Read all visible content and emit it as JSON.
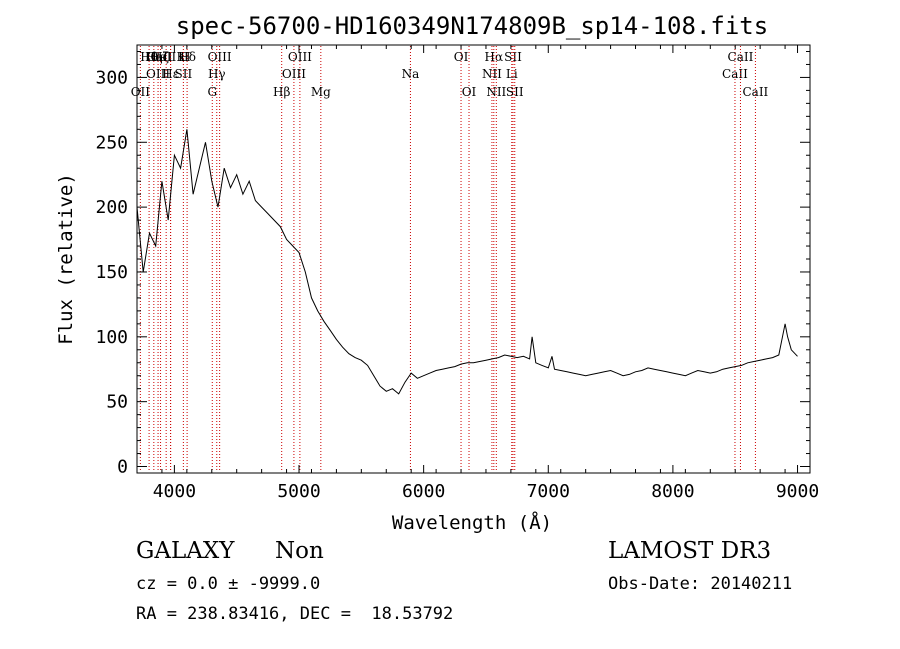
{
  "chart_data": {
    "type": "line",
    "title": "spec-56700-HD160349N174809B_sp14-108.fits",
    "xlabel": "Wavelength (Å)",
    "ylabel": "Flux (relative)",
    "xlim": [
      3700,
      9100
    ],
    "ylim": [
      -5,
      325
    ],
    "x_ticks": [
      4000,
      5000,
      6000,
      7000,
      8000,
      9000
    ],
    "y_ticks": [
      0,
      50,
      100,
      150,
      200,
      250,
      300
    ],
    "grid": false,
    "legend": "none",
    "line_color": "#000000",
    "marker_color": "#cc0000",
    "series": [
      {
        "x": [
          3700,
          3750,
          3800,
          3850,
          3900,
          3950,
          4000,
          4050,
          4100,
          4150,
          4200,
          4250,
          4300,
          4350,
          4400,
          4450,
          4500,
          4550,
          4600,
          4650,
          4700,
          4750,
          4800,
          4850,
          4900,
          4950,
          5000,
          5050,
          5100,
          5150,
          5200,
          5250,
          5300,
          5350,
          5400,
          5450,
          5500,
          5550,
          5600,
          5650,
          5700,
          5750,
          5800,
          5850,
          5900,
          5950,
          6000,
          6050,
          6100,
          6150,
          6200,
          6250,
          6300,
          6350,
          6400,
          6450,
          6500,
          6550,
          6600,
          6650,
          6700,
          6750,
          6800,
          6850,
          6870,
          6900,
          6950,
          7000,
          7030,
          7050,
          7100,
          7150,
          7200,
          7250,
          7300,
          7350,
          7400,
          7450,
          7500,
          7550,
          7600,
          7650,
          7700,
          7750,
          7800,
          7850,
          7900,
          7950,
          8000,
          8050,
          8100,
          8150,
          8200,
          8250,
          8300,
          8350,
          8400,
          8450,
          8500,
          8550,
          8600,
          8650,
          8700,
          8750,
          8800,
          8850,
          8900,
          8920,
          8950,
          9000
        ],
        "y": [
          200,
          150,
          180,
          170,
          220,
          190,
          240,
          230,
          260,
          210,
          230,
          250,
          220,
          200,
          230,
          215,
          225,
          210,
          220,
          205,
          200,
          195,
          190,
          185,
          175,
          170,
          165,
          150,
          130,
          120,
          112,
          105,
          98,
          92,
          87,
          84,
          82,
          78,
          70,
          62,
          58,
          60,
          56,
          65,
          72,
          68,
          70,
          72,
          74,
          75,
          76,
          77,
          79,
          80,
          80,
          81,
          82,
          83,
          84,
          86,
          85,
          84,
          85,
          83,
          100,
          80,
          78,
          76,
          85,
          75,
          74,
          73,
          72,
          71,
          70,
          71,
          72,
          73,
          74,
          72,
          70,
          71,
          73,
          74,
          76,
          75,
          74,
          73,
          72,
          71,
          70,
          72,
          74,
          73,
          72,
          73,
          75,
          76,
          77,
          78,
          80,
          81,
          82,
          83,
          84,
          86,
          110,
          100,
          90,
          85
        ]
      }
    ],
    "line_markers": [
      {
        "label": "OII",
        "x": 3727,
        "row": 2
      },
      {
        "label": "Hθ",
        "x": 3797,
        "row": 0
      },
      {
        "label": "Hη",
        "x": 3835,
        "row": 0
      },
      {
        "label": "OIII",
        "x": 3869,
        "row": 1
      },
      {
        "label": "Hζ",
        "x": 3889,
        "row": 0
      },
      {
        "label": "CaII K",
        "x": 3934,
        "row": 0
      },
      {
        "label": "CaII H",
        "x": 3969,
        "row": 0
      },
      {
        "label": "Hε",
        "x": 3970,
        "row": 1
      },
      {
        "label": "SII",
        "x": 4072,
        "row": 1
      },
      {
        "label": "Hδ",
        "x": 4102,
        "row": 0
      },
      {
        "label": "G",
        "x": 4304,
        "row": 2
      },
      {
        "label": "Hγ",
        "x": 4340,
        "row": 1
      },
      {
        "label": "OIII",
        "x": 4363,
        "row": 0
      },
      {
        "label": "Hβ",
        "x": 4861,
        "row": 2
      },
      {
        "label": "OIII",
        "x": 4959,
        "row": 1
      },
      {
        "label": "OIII",
        "x": 5007,
        "row": 0
      },
      {
        "label": "Mg",
        "x": 5175,
        "row": 2
      },
      {
        "label": "Na",
        "x": 5894,
        "row": 1
      },
      {
        "label": "OI",
        "x": 6300,
        "row": 0
      },
      {
        "label": "OI",
        "x": 6364,
        "row": 2
      },
      {
        "label": "NII",
        "x": 6548,
        "row": 1
      },
      {
        "label": "Hα",
        "x": 6563,
        "row": 0
      },
      {
        "label": "NII",
        "x": 6583,
        "row": 2
      },
      {
        "label": "Li",
        "x": 6707,
        "row": 1
      },
      {
        "label": "SII",
        "x": 6717,
        "row": 0
      },
      {
        "label": "SII",
        "x": 6731,
        "row": 2
      },
      {
        "label": "CaII",
        "x": 8498,
        "row": 1
      },
      {
        "label": "CaII",
        "x": 8542,
        "row": 0
      },
      {
        "label": "CaII",
        "x": 8662,
        "row": 2
      }
    ]
  },
  "info": {
    "class": "GALAXY",
    "subclass": "Non",
    "survey": "LAMOST DR3",
    "cz": "cz = 0.0 ± -9999.0",
    "obs_date": "Obs-Date: 20140211",
    "radec": "RA = 238.83416, DEC =  18.53792"
  }
}
